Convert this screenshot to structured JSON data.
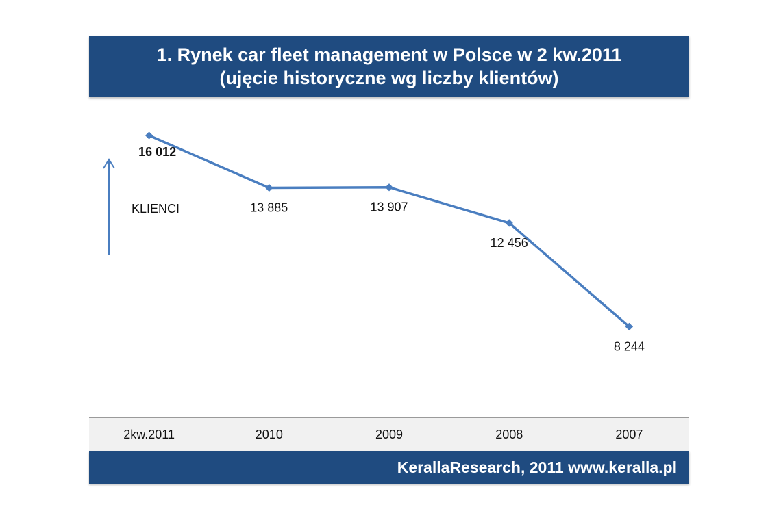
{
  "title": {
    "line1": "1. Rynek car fleet management w Polsce w 2 kw.2011",
    "line2": "(ujęcie historyczne wg liczby klientów)"
  },
  "footer": {
    "text": "KerallaResearch, 2011 www.keralla.pl"
  },
  "colors": {
    "banner": "#1f4b80",
    "line": "#4a7ec0",
    "arrow": "#4a7ec0"
  },
  "chart_data": {
    "type": "line",
    "categories": [
      "2kw.2011",
      "2010",
      "2009",
      "2008",
      "2007"
    ],
    "values": [
      16012,
      13885,
      13907,
      12456,
      8244
    ],
    "data_labels": [
      "16 012",
      "13 885",
      "13 907",
      "12 456",
      "8 244"
    ],
    "ylabel": "KLIENCI",
    "grid": false
  }
}
